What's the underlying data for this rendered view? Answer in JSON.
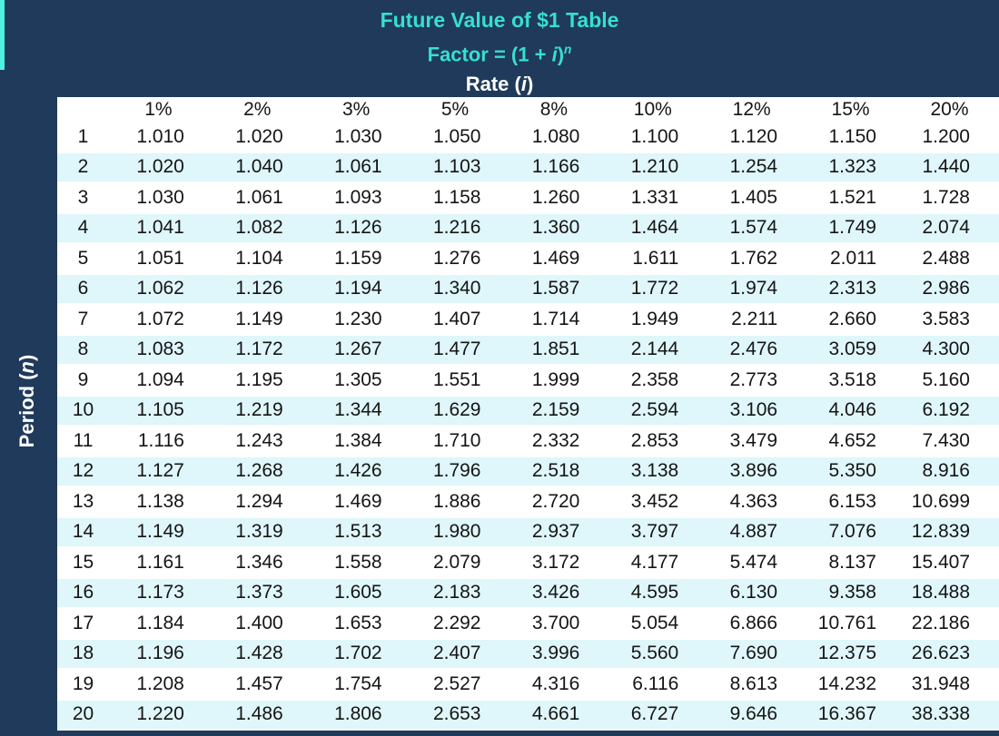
{
  "header": {
    "title": "Future Value of $1 Table",
    "formula": {
      "prefix": "Factor = (1 + ",
      "var": "i",
      "close": ")",
      "exponent": "n"
    },
    "rate_label": {
      "prefix": "Rate (",
      "var": "i",
      "suffix": ")"
    }
  },
  "side": {
    "period_label": {
      "prefix": "Period (",
      "var": "n",
      "suffix": ")"
    }
  },
  "colors": {
    "navy": "#1F3A5B",
    "teal-text": "#38DFCF",
    "teal-bar": "#4DF3DE",
    "stripe": "#DFF6FA",
    "cell-text": "#151515"
  },
  "table": {
    "corner_label": "",
    "columns": [
      "1%",
      "2%",
      "3%",
      "5%",
      "8%",
      "10%",
      "12%",
      "15%",
      "20%"
    ],
    "rows": [
      {
        "period": "1",
        "values": [
          "1.010",
          "1.020",
          "1.030",
          "1.050",
          "1.080",
          "1.100",
          "1.120",
          "1.150",
          "1.200"
        ]
      },
      {
        "period": "2",
        "values": [
          "1.020",
          "1.040",
          "1.061",
          "1.103",
          "1.166",
          "1.210",
          "1.254",
          "1.323",
          "1.440"
        ]
      },
      {
        "period": "3",
        "values": [
          "1.030",
          "1.061",
          "1.093",
          "1.158",
          "1.260",
          "1.331",
          "1.405",
          "1.521",
          "1.728"
        ]
      },
      {
        "period": "4",
        "values": [
          "1.041",
          "1.082",
          "1.126",
          "1.216",
          "1.360",
          "1.464",
          "1.574",
          "1.749",
          "2.074"
        ]
      },
      {
        "period": "5",
        "values": [
          "1.051",
          "1.104",
          "1.159",
          "1.276",
          "1.469",
          "1.611",
          "1.762",
          "2.011",
          "2.488"
        ]
      },
      {
        "period": "6",
        "values": [
          "1.062",
          "1.126",
          "1.194",
          "1.340",
          "1.587",
          "1.772",
          "1.974",
          "2.313",
          "2.986"
        ]
      },
      {
        "period": "7",
        "values": [
          "1.072",
          "1.149",
          "1.230",
          "1.407",
          "1.714",
          "1.949",
          "2.211",
          "2.660",
          "3.583"
        ]
      },
      {
        "period": "8",
        "values": [
          "1.083",
          "1.172",
          "1.267",
          "1.477",
          "1.851",
          "2.144",
          "2.476",
          "3.059",
          "4.300"
        ]
      },
      {
        "period": "9",
        "values": [
          "1.094",
          "1.195",
          "1.305",
          "1.551",
          "1.999",
          "2.358",
          "2.773",
          "3.518",
          "5.160"
        ]
      },
      {
        "period": "10",
        "values": [
          "1.105",
          "1.219",
          "1.344",
          "1.629",
          "2.159",
          "2.594",
          "3.106",
          "4.046",
          "6.192"
        ]
      },
      {
        "period": "11",
        "values": [
          "1.116",
          "1.243",
          "1.384",
          "1.710",
          "2.332",
          "2.853",
          "3.479",
          "4.652",
          "7.430"
        ]
      },
      {
        "period": "12",
        "values": [
          "1.127",
          "1.268",
          "1.426",
          "1.796",
          "2.518",
          "3.138",
          "3.896",
          "5.350",
          "8.916"
        ]
      },
      {
        "period": "13",
        "values": [
          "1.138",
          "1.294",
          "1.469",
          "1.886",
          "2.720",
          "3.452",
          "4.363",
          "6.153",
          "10.699"
        ]
      },
      {
        "period": "14",
        "values": [
          "1.149",
          "1.319",
          "1.513",
          "1.980",
          "2.937",
          "3.797",
          "4.887",
          "7.076",
          "12.839"
        ]
      },
      {
        "period": "15",
        "values": [
          "1.161",
          "1.346",
          "1.558",
          "2.079",
          "3.172",
          "4.177",
          "5.474",
          "8.137",
          "15.407"
        ]
      },
      {
        "period": "16",
        "values": [
          "1.173",
          "1.373",
          "1.605",
          "2.183",
          "3.426",
          "4.595",
          "6.130",
          "9.358",
          "18.488"
        ]
      },
      {
        "period": "17",
        "values": [
          "1.184",
          "1.400",
          "1.653",
          "2.292",
          "3.700",
          "5.054",
          "6.866",
          "10.761",
          "22.186"
        ]
      },
      {
        "period": "18",
        "values": [
          "1.196",
          "1.428",
          "1.702",
          "2.407",
          "3.996",
          "5.560",
          "7.690",
          "12.375",
          "26.623"
        ]
      },
      {
        "period": "19",
        "values": [
          "1.208",
          "1.457",
          "1.754",
          "2.527",
          "4.316",
          "6.116",
          "8.613",
          "14.232",
          "31.948"
        ]
      },
      {
        "period": "20",
        "values": [
          "1.220",
          "1.486",
          "1.806",
          "2.653",
          "4.661",
          "6.727",
          "9.646",
          "16.367",
          "38.338"
        ]
      }
    ]
  }
}
